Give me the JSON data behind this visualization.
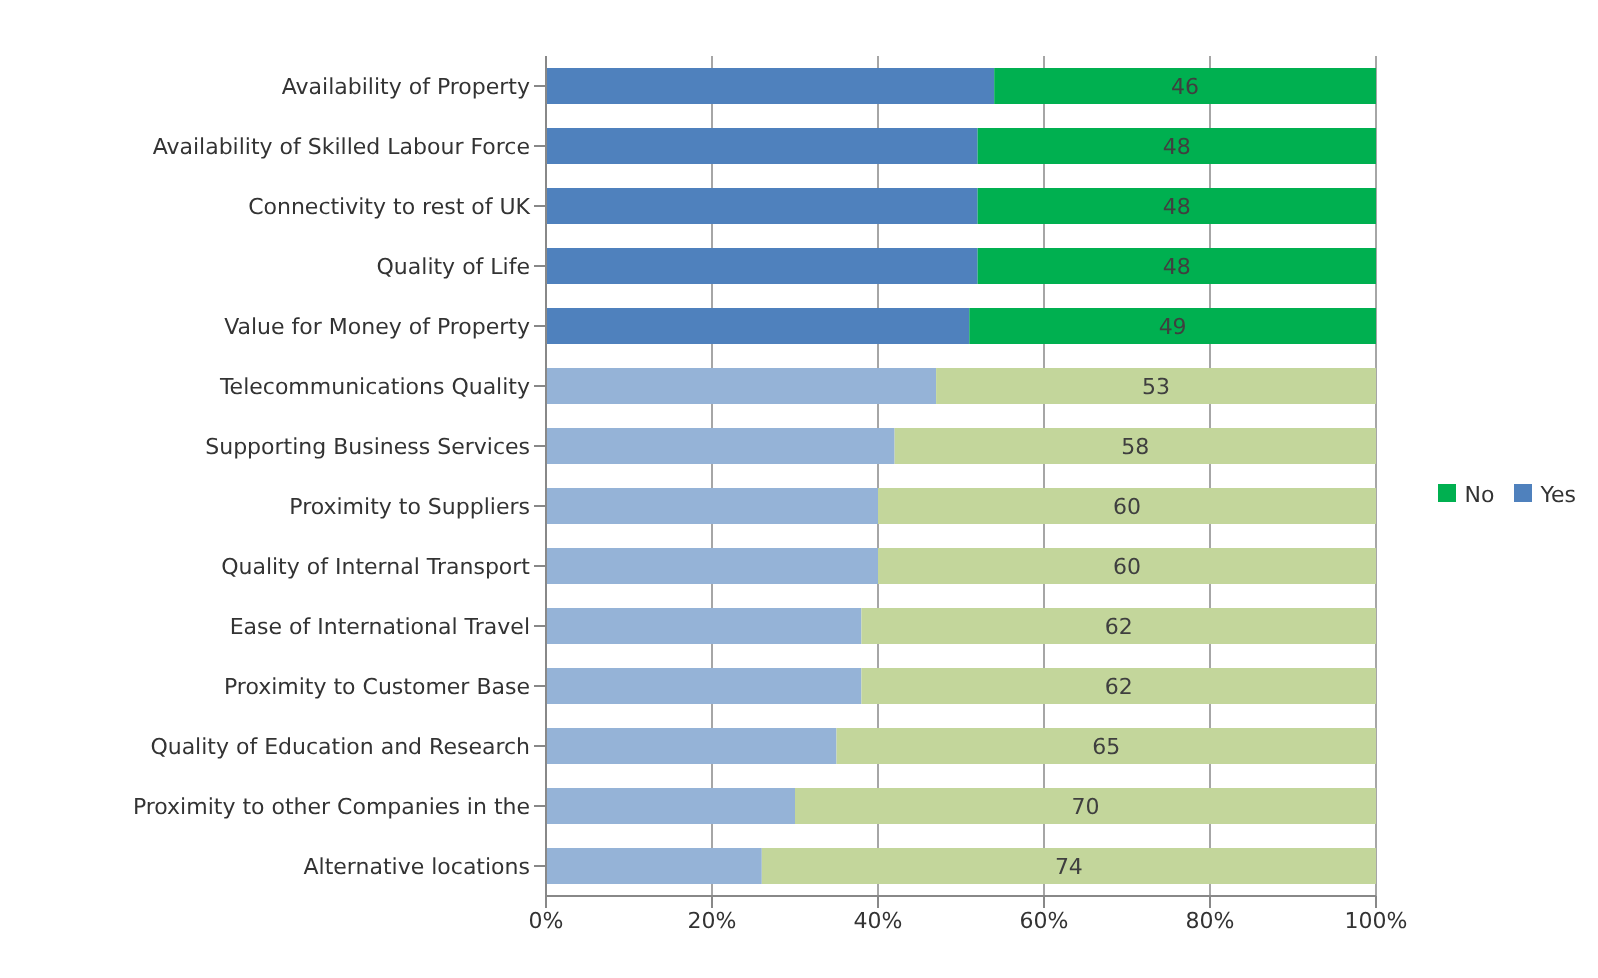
{
  "chart_data": {
    "type": "bar",
    "orientation": "horizontal",
    "stacked": true,
    "categories": [
      "Availability of Property",
      "Availability of Skilled Labour Force",
      "Connectivity to rest of UK",
      "Quality of Life",
      "Value for Money of Property",
      "Telecommunications Quality",
      "Supporting Business Services",
      "Proximity to Suppliers",
      "Quality of Internal Transport",
      "Ease of International Travel",
      "Proximity to Customer Base",
      "Quality of Education and Research",
      "Proximity to other Companies in the",
      "Alternative locations"
    ],
    "series": [
      {
        "name": "Yes",
        "color": "#4f81bd",
        "colors": [
          "#4f81bd",
          "#4f81bd",
          "#4f81bd",
          "#4f81bd",
          "#4f81bd",
          "#95b3d7",
          "#95b3d7",
          "#95b3d7",
          "#95b3d7",
          "#95b3d7",
          "#95b3d7",
          "#95b3d7",
          "#95b3d7",
          "#95b3d7"
        ],
        "values": [
          54,
          52,
          52,
          52,
          51,
          47,
          42,
          40,
          40,
          38,
          38,
          35,
          30,
          26
        ]
      },
      {
        "name": "No",
        "color": "#00b050",
        "colors": [
          "#00b050",
          "#00b050",
          "#00b050",
          "#00b050",
          "#00b050",
          "#c3d69b",
          "#c3d69b",
          "#c3d69b",
          "#c3d69b",
          "#c3d69b",
          "#c3d69b",
          "#c3d69b",
          "#c3d69b",
          "#c3d69b"
        ],
        "values": [
          46,
          48,
          48,
          48,
          49,
          53,
          58,
          60,
          60,
          62,
          62,
          65,
          70,
          74
        ],
        "value_labels": [
          "46",
          "48",
          "48",
          "48",
          "49",
          "53",
          "58",
          "60",
          "60",
          "62",
          "62",
          "65",
          "70",
          "74"
        ]
      }
    ],
    "xlim": [
      0,
      100
    ],
    "xticks": [
      {
        "value": 0,
        "label": "0%"
      },
      {
        "value": 20,
        "label": "20%"
      },
      {
        "value": 40,
        "label": "40%"
      },
      {
        "value": 60,
        "label": "60%"
      },
      {
        "value": 80,
        "label": "80%"
      },
      {
        "value": 100,
        "label": "100%"
      }
    ],
    "grid": "x",
    "legend": "right"
  }
}
